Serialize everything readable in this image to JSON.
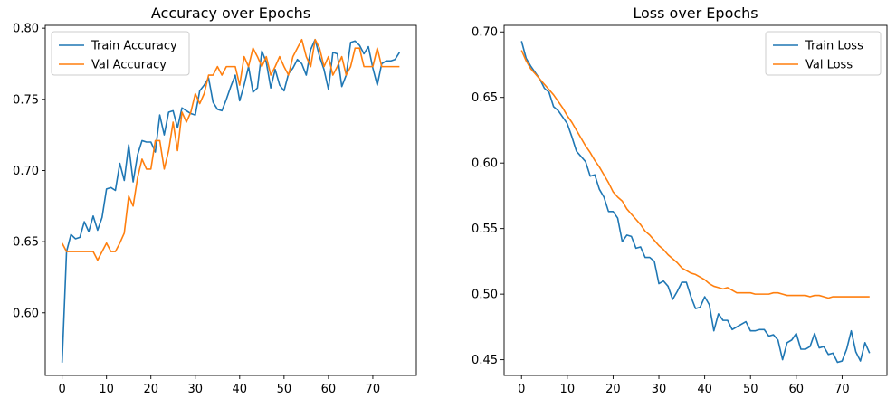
{
  "chart_data": [
    {
      "type": "line",
      "title": "Accuracy over Epochs",
      "xlabel": "",
      "ylabel": "",
      "xlim": [
        -3.8,
        79.8
      ],
      "ylim": [
        0.556,
        0.802
      ],
      "xticks": [
        0,
        10,
        20,
        30,
        40,
        50,
        60,
        70
      ],
      "yticks": [
        0.6,
        0.65,
        0.7,
        0.75,
        0.8
      ],
      "ytick_labels": [
        "0.60",
        "0.65",
        "0.70",
        "0.75",
        "0.80"
      ],
      "grid": false,
      "legend_position": "upper-left",
      "series": [
        {
          "name": "Train Accuracy",
          "color": "#1f77b4",
          "values": [
            0.565,
            0.643,
            0.655,
            0.652,
            0.653,
            0.664,
            0.657,
            0.668,
            0.658,
            0.667,
            0.687,
            0.688,
            0.686,
            0.705,
            0.693,
            0.718,
            0.692,
            0.711,
            0.721,
            0.72,
            0.72,
            0.713,
            0.739,
            0.725,
            0.741,
            0.742,
            0.73,
            0.744,
            0.742,
            0.74,
            0.739,
            0.756,
            0.76,
            0.765,
            0.748,
            0.743,
            0.742,
            0.75,
            0.759,
            0.767,
            0.749,
            0.76,
            0.773,
            0.755,
            0.758,
            0.784,
            0.776,
            0.758,
            0.771,
            0.76,
            0.756,
            0.768,
            0.772,
            0.778,
            0.775,
            0.767,
            0.785,
            0.792,
            0.78,
            0.771,
            0.757,
            0.783,
            0.782,
            0.759,
            0.767,
            0.79,
            0.791,
            0.788,
            0.782,
            0.787,
            0.772,
            0.76,
            0.775,
            0.777,
            0.777,
            0.778,
            0.783
          ]
        },
        {
          "name": "Val Accuracy",
          "color": "#ff7f0e",
          "values": [
            0.649,
            0.643,
            0.643,
            0.643,
            0.643,
            0.643,
            0.643,
            0.643,
            0.637,
            0.643,
            0.649,
            0.643,
            0.643,
            0.649,
            0.656,
            0.682,
            0.675,
            0.695,
            0.708,
            0.701,
            0.701,
            0.721,
            0.721,
            0.701,
            0.714,
            0.734,
            0.714,
            0.741,
            0.734,
            0.741,
            0.754,
            0.747,
            0.754,
            0.767,
            0.767,
            0.773,
            0.767,
            0.773,
            0.773,
            0.773,
            0.76,
            0.78,
            0.773,
            0.786,
            0.78,
            0.773,
            0.78,
            0.767,
            0.773,
            0.78,
            0.773,
            0.767,
            0.78,
            0.786,
            0.792,
            0.78,
            0.773,
            0.792,
            0.786,
            0.773,
            0.78,
            0.767,
            0.773,
            0.78,
            0.767,
            0.773,
            0.786,
            0.786,
            0.773,
            0.773,
            0.773,
            0.786,
            0.773,
            0.773,
            0.773,
            0.773,
            0.773
          ]
        }
      ]
    },
    {
      "type": "line",
      "title": "Loss over Epochs",
      "xlabel": "",
      "ylabel": "",
      "xlim": [
        -3.8,
        79.8
      ],
      "ylim": [
        0.438,
        0.705
      ],
      "xticks": [
        0,
        10,
        20,
        30,
        40,
        50,
        60,
        70
      ],
      "yticks": [
        0.45,
        0.5,
        0.55,
        0.6,
        0.65,
        0.7
      ],
      "ytick_labels": [
        "0.45",
        "0.50",
        "0.55",
        "0.60",
        "0.65",
        "0.70"
      ],
      "grid": false,
      "legend_position": "upper-right",
      "series": [
        {
          "name": "Train Loss",
          "color": "#1f77b4",
          "values": [
            0.693,
            0.68,
            0.674,
            0.669,
            0.664,
            0.657,
            0.654,
            0.643,
            0.64,
            0.635,
            0.63,
            0.62,
            0.609,
            0.605,
            0.601,
            0.59,
            0.591,
            0.58,
            0.574,
            0.563,
            0.563,
            0.558,
            0.54,
            0.545,
            0.544,
            0.535,
            0.536,
            0.528,
            0.528,
            0.525,
            0.508,
            0.51,
            0.506,
            0.496,
            0.502,
            0.509,
            0.509,
            0.498,
            0.489,
            0.49,
            0.498,
            0.492,
            0.472,
            0.485,
            0.48,
            0.48,
            0.473,
            0.475,
            0.477,
            0.479,
            0.472,
            0.472,
            0.473,
            0.473,
            0.468,
            0.469,
            0.465,
            0.45,
            0.463,
            0.465,
            0.47,
            0.458,
            0.458,
            0.46,
            0.47,
            0.459,
            0.46,
            0.454,
            0.455,
            0.448,
            0.449,
            0.458,
            0.472,
            0.456,
            0.449,
            0.463,
            0.455
          ]
        },
        {
          "name": "Val Loss",
          "color": "#ff7f0e",
          "values": [
            0.686,
            0.678,
            0.672,
            0.668,
            0.664,
            0.66,
            0.656,
            0.652,
            0.647,
            0.642,
            0.636,
            0.631,
            0.625,
            0.619,
            0.613,
            0.608,
            0.602,
            0.597,
            0.591,
            0.585,
            0.578,
            0.574,
            0.571,
            0.565,
            0.561,
            0.557,
            0.553,
            0.548,
            0.545,
            0.541,
            0.537,
            0.534,
            0.53,
            0.527,
            0.524,
            0.52,
            0.518,
            0.516,
            0.515,
            0.513,
            0.511,
            0.508,
            0.506,
            0.505,
            0.504,
            0.505,
            0.503,
            0.501,
            0.501,
            0.501,
            0.501,
            0.5,
            0.5,
            0.5,
            0.5,
            0.501,
            0.501,
            0.5,
            0.499,
            0.499,
            0.499,
            0.499,
            0.499,
            0.498,
            0.499,
            0.499,
            0.498,
            0.497,
            0.498,
            0.498,
            0.498,
            0.498,
            0.498,
            0.498,
            0.498,
            0.498,
            0.498
          ]
        }
      ]
    }
  ]
}
